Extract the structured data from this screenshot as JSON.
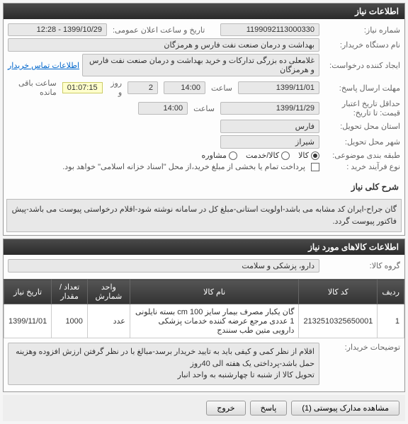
{
  "panel1": {
    "title": "اطلاعات نیاز",
    "need_number_label": "شماره نیاز:",
    "need_number": "1199092113000330",
    "public_announce_label": "تاریخ و ساعت اعلان عمومی:",
    "public_announce": "1399/10/29 - 12:28",
    "buyer_org_label": "نام دستگاه خریدار:",
    "buyer_org": "بهداشت و درمان صنعت نفت فارس و هرمزگان",
    "requester_label": "ایجاد کننده درخواست:",
    "requester": "غلامعلی ده بزرگی تدارکات و خرید بهداشت و درمان صنعت نفت فارس و هرمزگان",
    "contact_link": "اطلاعات تماس خریدار",
    "response_deadline_label": "مهلت ارسال پاسخ:",
    "from_label": "تا تاریخ:",
    "response_date": "1399/11/01",
    "time_label": "ساعت",
    "response_time": "14:00",
    "days_left": "2",
    "days_label": "روز و",
    "countdown": "01:07:15",
    "remain_label": "ساعت باقی مانده",
    "price_validity_label": "حداقل تاریخ اعتبار قیمت: تا تاریخ:",
    "price_date": "1399/11/29",
    "price_time": "14:00",
    "delivery_province_label": "استان محل تحویل:",
    "delivery_province": "فارس",
    "delivery_city_label": "شهر محل تحویل:",
    "delivery_city": "شیراز",
    "budget_label": "طبقه بندی موضوعی:",
    "goods": "کالا",
    "service": "کالا/خدمت",
    "consult": "مشاوره",
    "process_label": "نوع فرآیند خرید :",
    "partial_pay": "پرداخت تمام یا بخشی از مبلغ خرید،از محل \"اسناد خزانه اسلامی\" خواهد بود.",
    "desc_label": "شرح کلی نیاز",
    "desc": "گان جراح-ایران کد مشابه می باشد-اولویت استانی-مبلغ کل در سامانه نوشته شود-اقلام درخواستی پیوست می باشد-پیش فاکتور پیوست گردد."
  },
  "panel2": {
    "title": "اطلاعات کالاهای مورد نیاز",
    "group_label": "گروه کالا:",
    "group": "دارو، پزشکی و سلامت",
    "columns": [
      "ردیف",
      "کد کالا",
      "نام کالا",
      "واحد شمارش",
      "تعداد / مقدار",
      "تاریخ نیاز"
    ],
    "rows": [
      [
        "1",
        "2132510325650001",
        "گان یکبار مصرف بیمار سایز 100 cm بسته نایلونی 1 عددی مرجع عرضه کننده خدمات پزشکی دارویی متین طب سنندج",
        "عدد",
        "1000",
        "1399/11/01"
      ]
    ],
    "buyer_notes_label": "توضیحات خریدار:",
    "buyer_notes": "اقلام از نظر کمی و کیفی باید به تایید خریدار برسد-مبالغ با در نظر گرفتن ارزش افزوده وهزینه حمل باشد-پرداختی یک هفته الی 40روز\nتحویل کالا از شنبه تا چهارشنبه به واحد انبار"
  },
  "buttons": {
    "attachments": "مشاهده مدارک پیوستی (1)",
    "response": "پاسخ",
    "exit": "خروج"
  }
}
